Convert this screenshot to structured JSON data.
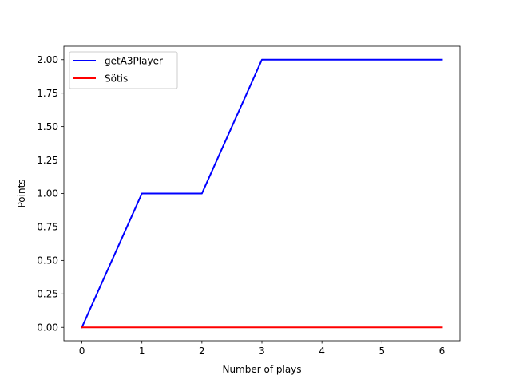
{
  "chart_data": {
    "type": "line",
    "title": "",
    "xlabel": "Number of plays",
    "ylabel": "Points",
    "xlim": [
      -0.3,
      6.3
    ],
    "ylim": [
      -0.1,
      2.1
    ],
    "x_ticks": [
      0,
      1,
      2,
      3,
      4,
      5,
      6
    ],
    "x_tick_labels": [
      "0",
      "1",
      "2",
      "3",
      "4",
      "5",
      "6"
    ],
    "y_ticks": [
      0,
      0.25,
      0.5,
      0.75,
      1.0,
      1.25,
      1.5,
      1.75,
      2.0
    ],
    "y_tick_labels": [
      "0.00",
      "0.25",
      "0.50",
      "0.75",
      "1.00",
      "1.25",
      "1.50",
      "1.75",
      "2.00"
    ],
    "grid": false,
    "legend_position": "top-left",
    "x": [
      0,
      1,
      2,
      3,
      4,
      5,
      6
    ],
    "series": [
      {
        "name": "getA3Player",
        "color": "#0000ff",
        "values": [
          0,
          1,
          1,
          2,
          2,
          2,
          2
        ]
      },
      {
        "name": "Sötis",
        "color": "#ff0000",
        "values": [
          0,
          0,
          0,
          0,
          0,
          0,
          0
        ]
      }
    ]
  }
}
